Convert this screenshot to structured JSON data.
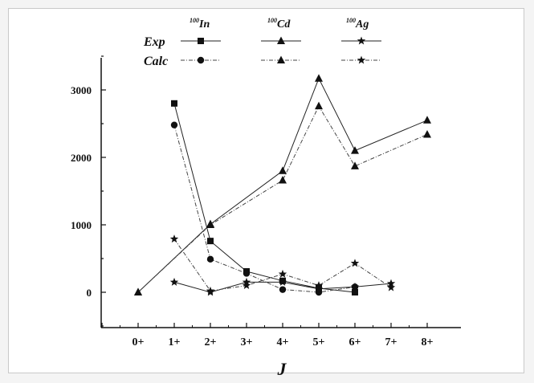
{
  "chart_data": {
    "type": "line",
    "xlabel": "J",
    "x_categories": [
      "0+",
      "1+",
      "2+",
      "3+",
      "4+",
      "5+",
      "6+",
      "7+",
      "8+"
    ],
    "yticks": [
      0,
      1000,
      2000,
      3000
    ],
    "ylim": [
      -500,
      3500
    ],
    "grid": false,
    "legend": {
      "placement": "top-center",
      "row_labels": [
        "Exp",
        "Calc"
      ],
      "columns": [
        {
          "mass": "100",
          "element": "In"
        },
        {
          "mass": "100",
          "element": "Cd"
        },
        {
          "mass": "100",
          "element": "Ag"
        }
      ]
    },
    "series": [
      {
        "name": "100In Exp",
        "marker": "square",
        "dash": "solid",
        "points": [
          {
            "x": "1+",
            "y": 2800
          },
          {
            "x": "2+",
            "y": 760
          },
          {
            "x": "3+",
            "y": 310
          },
          {
            "x": "4+",
            "y": 170
          },
          {
            "x": "5+",
            "y": 60
          },
          {
            "x": "6+",
            "y": 0
          }
        ]
      },
      {
        "name": "100In Calc",
        "marker": "circle",
        "dash": "dashdot",
        "points": [
          {
            "x": "1+",
            "y": 2480
          },
          {
            "x": "2+",
            "y": 490
          },
          {
            "x": "3+",
            "y": 280
          },
          {
            "x": "4+",
            "y": 40
          },
          {
            "x": "5+",
            "y": 0
          },
          {
            "x": "6+",
            "y": 80
          }
        ]
      },
      {
        "name": "100Cd Exp",
        "marker": "triangle",
        "dash": "solid",
        "points": [
          {
            "x": "0+",
            "y": 0
          },
          {
            "x": "2+",
            "y": 1010
          },
          {
            "x": "4+",
            "y": 1800
          },
          {
            "x": "5+",
            "y": 3170
          },
          {
            "x": "6+",
            "y": 2100
          },
          {
            "x": "8+",
            "y": 2550
          }
        ]
      },
      {
        "name": "100Cd Calc",
        "marker": "triangle",
        "dash": "dashdot",
        "points": [
          {
            "x": "0+",
            "y": 0
          },
          {
            "x": "2+",
            "y": 1000
          },
          {
            "x": "4+",
            "y": 1660
          },
          {
            "x": "5+",
            "y": 2760
          },
          {
            "x": "6+",
            "y": 1870
          },
          {
            "x": "8+",
            "y": 2340
          }
        ]
      },
      {
        "name": "100Ag Exp",
        "marker": "star",
        "dash": "solid",
        "points": [
          {
            "x": "1+",
            "y": 150
          },
          {
            "x": "2+",
            "y": 0
          },
          {
            "x": "3+",
            "y": 150
          },
          {
            "x": "4+",
            "y": 150
          },
          {
            "x": "5+",
            "y": 50
          },
          {
            "x": "6+",
            "y": 80
          },
          {
            "x": "7+",
            "y": 130
          }
        ]
      },
      {
        "name": "100Ag Calc",
        "marker": "star",
        "dash": "dashdot",
        "points": [
          {
            "x": "1+",
            "y": 790
          },
          {
            "x": "2+",
            "y": 20
          },
          {
            "x": "3+",
            "y": 100
          },
          {
            "x": "4+",
            "y": 270
          },
          {
            "x": "5+",
            "y": 100
          },
          {
            "x": "6+",
            "y": 430
          },
          {
            "x": "7+",
            "y": 70
          }
        ]
      }
    ]
  }
}
